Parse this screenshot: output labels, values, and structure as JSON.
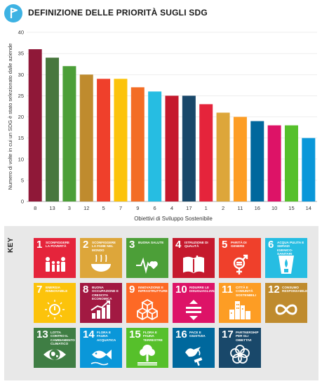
{
  "header": {
    "title": "DEFINIZIONE DELLE PRIORITÀ SUGLI SDG",
    "logo_icon": "flag-pin-icon",
    "logo_color": "#3db2e3"
  },
  "chart_data": {
    "type": "bar",
    "title": "DEFINIZIONE DELLE PRIORITÀ SUGLI SDG",
    "xlabel": "Obiettivi di Sviluppo Sostenibile",
    "ylabel": "Numero di volte in cui un SDG è stato selezionato dalle aziende",
    "ylim": [
      0,
      40
    ],
    "yticks": [
      "0",
      "5",
      "10",
      "15",
      "20",
      "25",
      "30",
      "35",
      "40"
    ],
    "grid": true,
    "categories": [
      "8",
      "13",
      "3",
      "12",
      "5",
      "7",
      "9",
      "6",
      "4",
      "17",
      "1",
      "2",
      "11",
      "16",
      "10",
      "15",
      "14"
    ],
    "values": [
      36,
      34,
      32,
      30,
      29,
      29,
      27,
      26,
      25,
      25,
      23,
      21,
      20,
      19,
      18,
      18,
      15
    ],
    "colors": [
      "#8f1838",
      "#48773e",
      "#4c9f38",
      "#bf8b2e",
      "#ef402b",
      "#fcc30b",
      "#f36d25",
      "#26bde2",
      "#c5192d",
      "#19486a",
      "#e5243b",
      "#dda63a",
      "#fd9d24",
      "#00689d",
      "#dd1367",
      "#56c02b",
      "#0a97d9"
    ]
  },
  "key": {
    "label": "KEY",
    "tiles": [
      {
        "num": "1",
        "label": "SCONFIGGERE LA POVERTÀ",
        "color": "#e5243b",
        "icon": "family-icon"
      },
      {
        "num": "2",
        "label": "SCONFIGGERE LA FAME NEL MONDO",
        "color": "#dda63a",
        "icon": "food-bowl-icon"
      },
      {
        "num": "3",
        "label": "BUONA SALUTE",
        "color": "#4c9f38",
        "icon": "heartbeat-icon"
      },
      {
        "num": "4",
        "label": "ISTRUZIONE DI QUALITÀ",
        "color": "#c5192d",
        "icon": "book-icon"
      },
      {
        "num": "5",
        "label": "PARITÀ DI GENERE",
        "color": "#ef402b",
        "icon": "gender-icon"
      },
      {
        "num": "6",
        "label": "ACQUA PULITA E SERVIZI IGIENICO-SANITARI",
        "color": "#26bde2",
        "icon": "water-glass-icon"
      },
      {
        "num": "7",
        "label": "ENERGIA RINNOVABILE",
        "color": "#fcc30b",
        "icon": "power-sun-icon"
      },
      {
        "num": "8",
        "label": "BUONA OCCUPAZIONE E CRESCITA ECONOMICA",
        "color": "#a21942",
        "icon": "growth-chart-icon"
      },
      {
        "num": "9",
        "label": "INNOVAZIONE E INFRASTRUTTURE",
        "color": "#fd6925",
        "icon": "cubes-icon"
      },
      {
        "num": "10",
        "label": "RIDURRE LE DISUGUAGLIANZE",
        "color": "#dd1367",
        "icon": "equality-icon"
      },
      {
        "num": "11",
        "label": "CITTÀ E COMUNITÀ SOSTENIBILI",
        "color": "#fd9d24",
        "icon": "city-icon"
      },
      {
        "num": "12",
        "label": "CONSUMO RESPONSABILE",
        "color": "#bf8b2e",
        "icon": "infinity-icon"
      },
      {
        "num": "13",
        "label": "LOTTA CONTRO IL CAMBIAMENTO CLIMATICO",
        "color": "#3f7e44",
        "icon": "earth-eye-icon"
      },
      {
        "num": "14",
        "label": "FLORA E FAUNA ACQUATICA",
        "color": "#0a97d9",
        "icon": "fish-icon"
      },
      {
        "num": "15",
        "label": "FLORA E FAUNA TERRESTRE",
        "color": "#56c02b",
        "icon": "tree-icon"
      },
      {
        "num": "16",
        "label": "PACE E GIUSTIZIA",
        "color": "#00689d",
        "icon": "dove-gavel-icon"
      },
      {
        "num": "17",
        "label": "PARTNERSHIP PER GLI OBIETTIVI",
        "color": "#19486a",
        "icon": "rings-icon"
      }
    ]
  }
}
